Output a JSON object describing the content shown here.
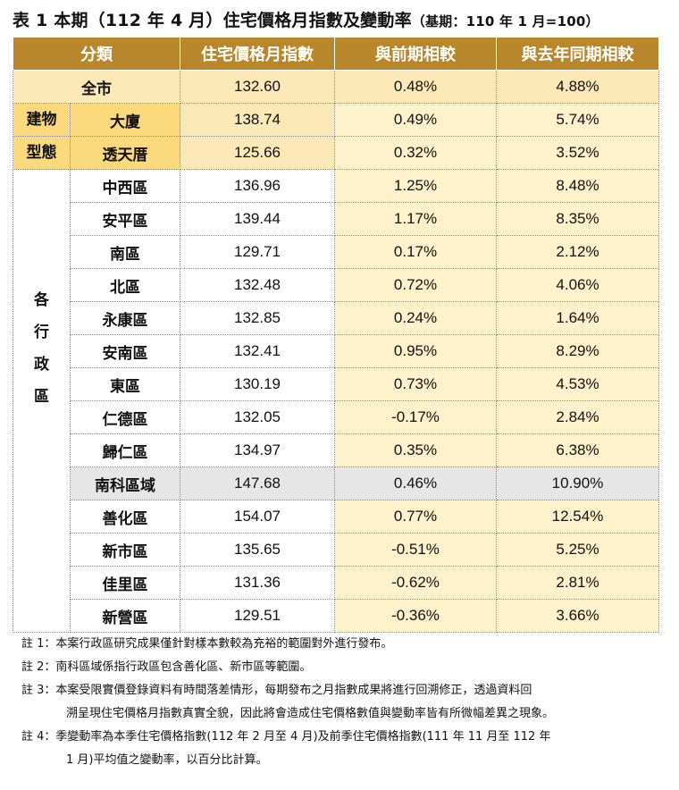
{
  "title": {
    "main": "表 1 本期（112 年 4 月）住宅價格月指數及變動率",
    "sub": "（基期：110 年 1 月=100）"
  },
  "headers": {
    "category": "分類",
    "index": "住宅價格月指數",
    "mom": "與前期相較",
    "yoy": "與去年同期相較"
  },
  "city": {
    "label": "全市",
    "index": "132.60",
    "mom": "0.48%",
    "yoy": "4.88%"
  },
  "building_group": {
    "label_chars": [
      "建物",
      "型態"
    ],
    "rows": [
      {
        "label": "大廈",
        "index": "138.74",
        "mom": "0.49%",
        "yoy": "5.74%"
      },
      {
        "label": "透天厝",
        "index": "125.66",
        "mom": "0.32%",
        "yoy": "3.52%"
      }
    ]
  },
  "admin_group": {
    "label_chars": [
      "各",
      "行",
      "政",
      "區"
    ],
    "rows": [
      {
        "label": "中西區",
        "index": "136.96",
        "mom": "1.25%",
        "yoy": "8.48%"
      },
      {
        "label": "安平區",
        "index": "139.44",
        "mom": "1.17%",
        "yoy": "8.35%"
      },
      {
        "label": "南區",
        "index": "129.71",
        "mom": "0.17%",
        "yoy": "2.12%"
      },
      {
        "label": "北區",
        "index": "132.48",
        "mom": "0.72%",
        "yoy": "4.06%"
      },
      {
        "label": "永康區",
        "index": "132.85",
        "mom": "0.24%",
        "yoy": "1.64%"
      },
      {
        "label": "安南區",
        "index": "132.41",
        "mom": "0.95%",
        "yoy": "8.29%"
      },
      {
        "label": "東區",
        "index": "130.19",
        "mom": "0.73%",
        "yoy": "4.53%"
      },
      {
        "label": "仁德區",
        "index": "132.05",
        "mom": "-0.17%",
        "yoy": "2.84%"
      },
      {
        "label": "歸仁區",
        "index": "134.97",
        "mom": "0.35%",
        "yoy": "6.38%"
      },
      {
        "label": "南科區域",
        "index": "147.68",
        "mom": "0.46%",
        "yoy": "10.90%"
      },
      {
        "label": "善化區",
        "index": "154.07",
        "mom": "0.77%",
        "yoy": "12.54%"
      },
      {
        "label": "新市區",
        "index": "135.65",
        "mom": "-0.51%",
        "yoy": "5.25%"
      },
      {
        "label": "佳里區",
        "index": "131.36",
        "mom": "-0.62%",
        "yoy": "2.81%"
      },
      {
        "label": "新營區",
        "index": "129.51",
        "mom": "-0.36%",
        "yoy": "3.66%"
      }
    ]
  },
  "notes": [
    {
      "lines": [
        "註 1：本案行政區研究成果僅針對樣本數較為充裕的範圍對外進行發布。"
      ]
    },
    {
      "lines": [
        "註 2：南科區域係指行政區包含善化區、新市區等範圍。"
      ]
    },
    {
      "lines": [
        "註 3：本案受限實價登錄資料有時間落差情形，每期發布之月指數成果將進行回溯修正，透過資料回",
        "溯呈現住宅價格月指數真實全貌，因此將會造成住宅價格數值與變動率皆有所微幅差異之現象。"
      ]
    },
    {
      "lines": [
        "註 4：季變動率為本季住宅價格指數(112 年 2 月至 4 月)及前季住宅價格指數(111 年 11 月至 112 年",
        "1 月)平均值之變動率，以百分比計算。"
      ]
    }
  ]
}
